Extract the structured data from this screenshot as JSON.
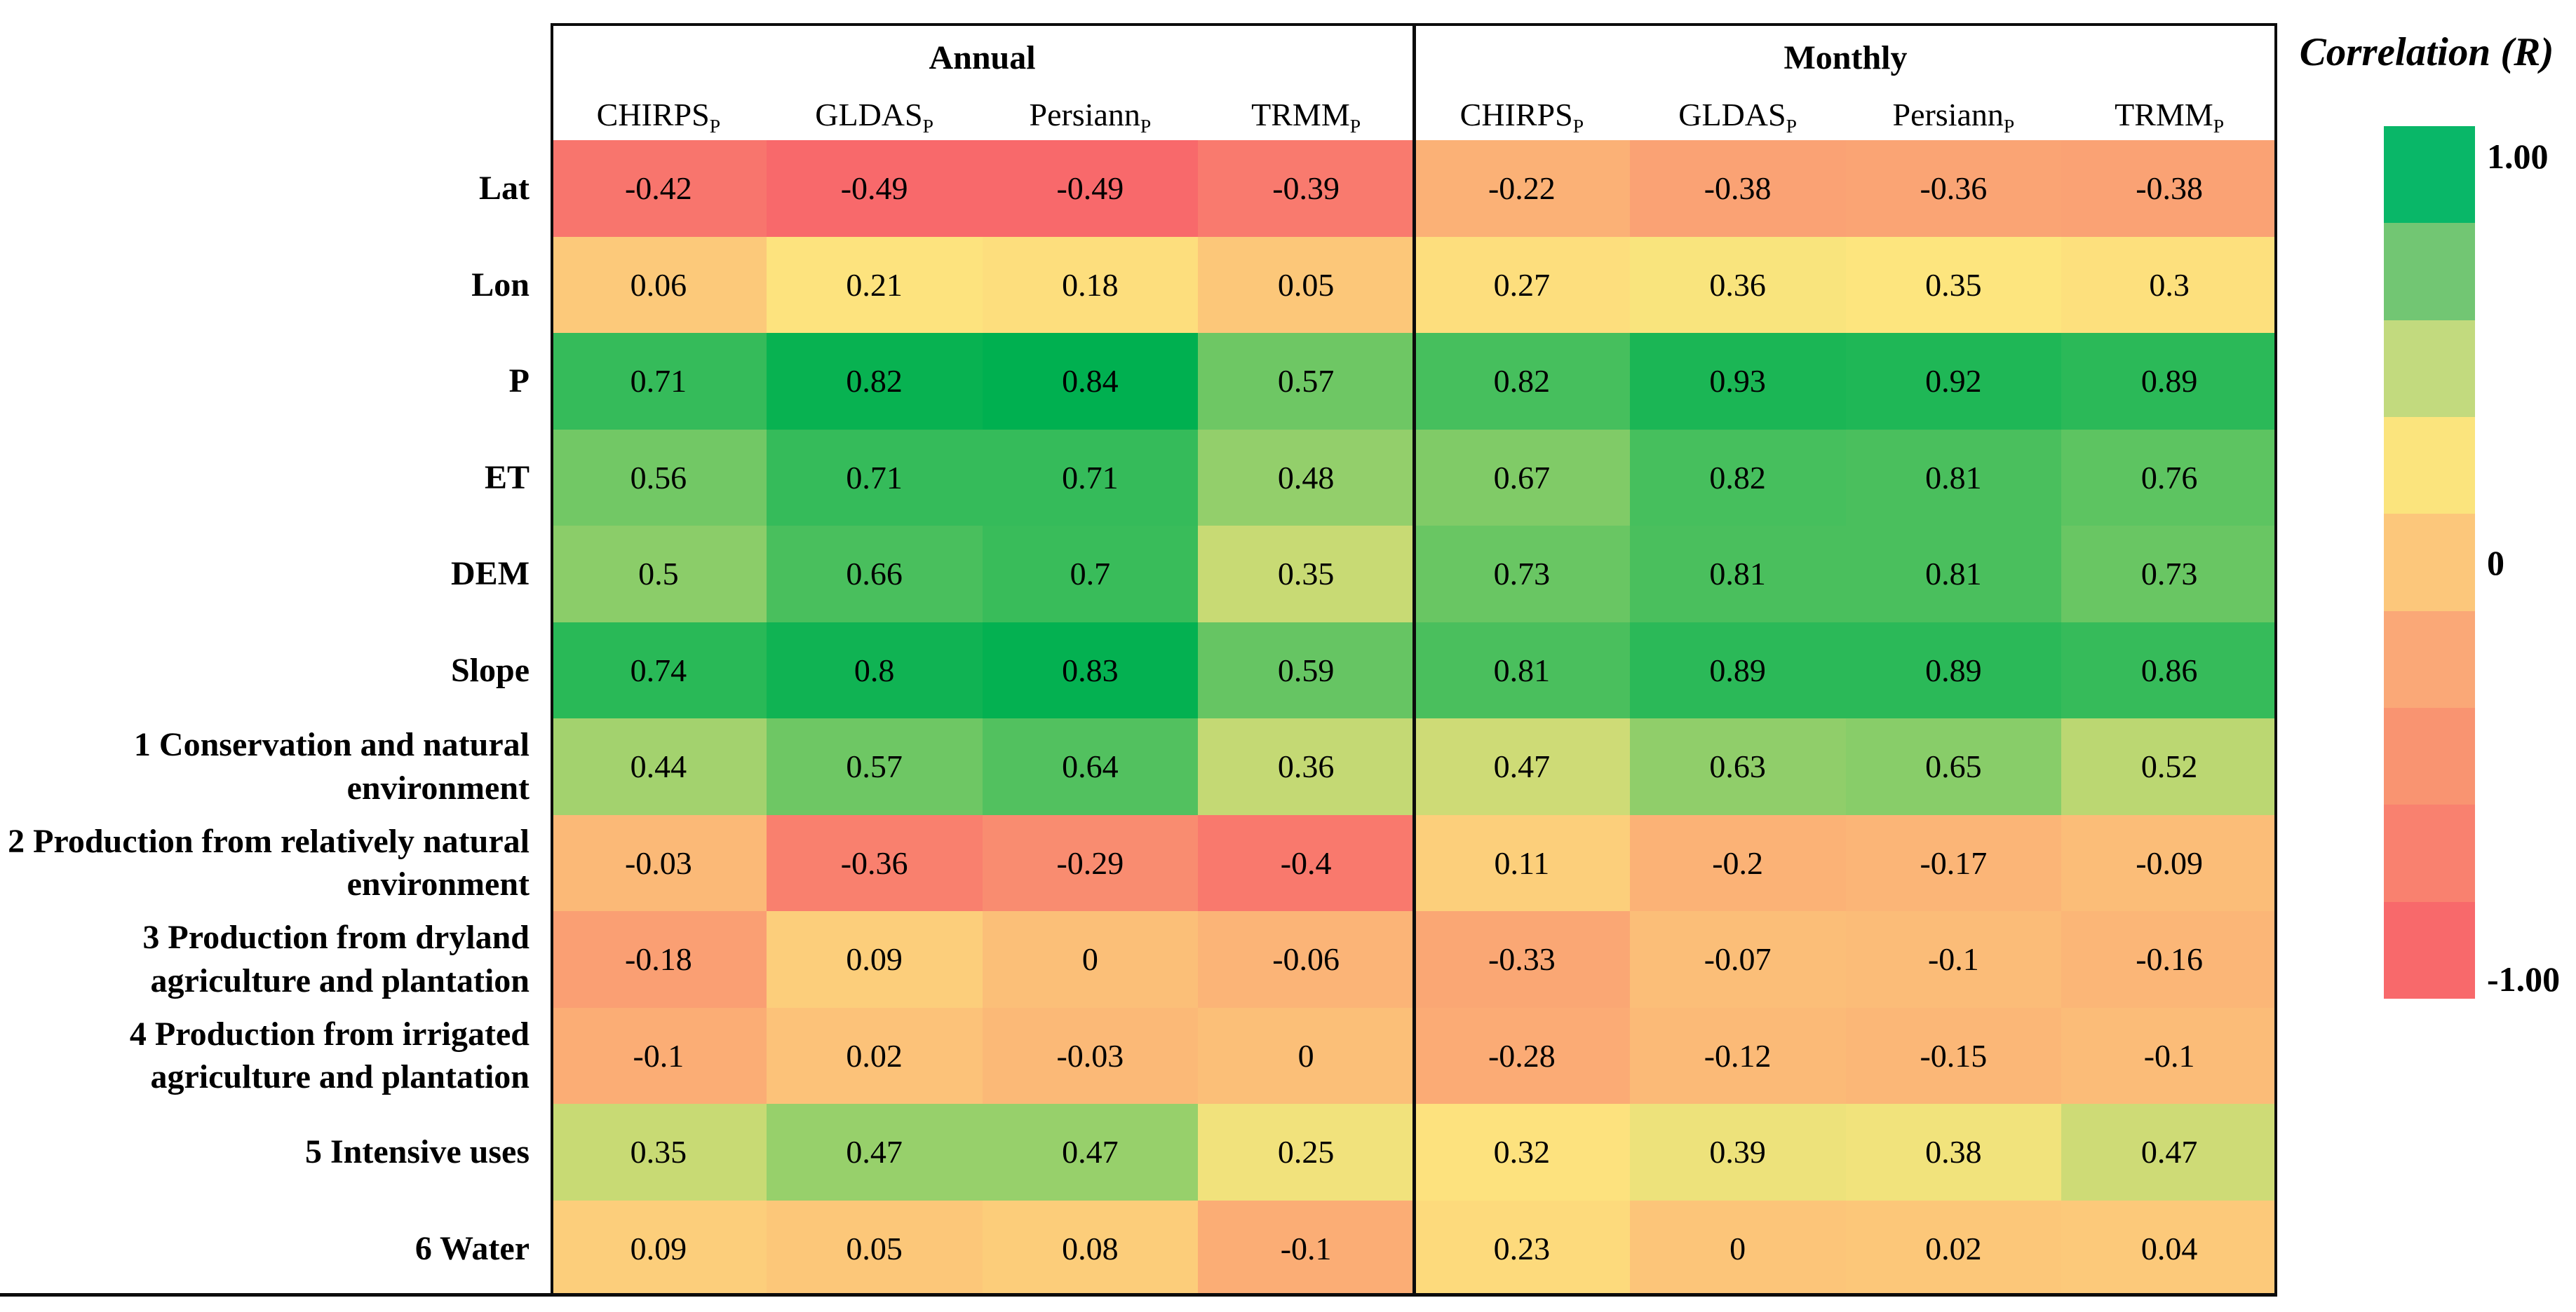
{
  "legend": {
    "title": "Correlation (R)",
    "top_label": "1.00",
    "mid_label": "0",
    "bottom_label": "-1.00",
    "blocks": [
      "#09B768",
      "#72C673",
      "#C2DA7E",
      "#FBE47D",
      "#FCC77B",
      "#FAA877",
      "#F99471",
      "#F9816F",
      "#F8696B"
    ]
  },
  "scales": {
    "annual": {
      "vmin": -0.49,
      "vmid": 0.22,
      "vmax": 0.84
    },
    "monthly": {
      "vmin": -1.0,
      "vmid": 0.35,
      "vmax": 1.0
    },
    "colors": {
      "low": "#F8696B",
      "mid": "#FDE57E",
      "high": "#00B050"
    }
  },
  "groups": [
    {
      "label": "Annual",
      "columns": [
        {
          "name": "CHIRPS",
          "sub": "P"
        },
        {
          "name": "GLDAS",
          "sub": "P"
        },
        {
          "name": "Persiann",
          "sub": "P"
        },
        {
          "name": "TRMM",
          "sub": "P"
        }
      ]
    },
    {
      "label": "Monthly",
      "columns": [
        {
          "name": "CHIRPS",
          "sub": "P"
        },
        {
          "name": "GLDAS",
          "sub": "P"
        },
        {
          "name": "Persiann",
          "sub": "P"
        },
        {
          "name": "TRMM",
          "sub": "P"
        }
      ]
    }
  ],
  "chart_data": {
    "type": "heatmap",
    "legend_title": "Correlation (R)",
    "column_groups": [
      "Annual",
      "Monthly"
    ],
    "columns": [
      "CHIRPS_P",
      "GLDAS_P",
      "Persiann_P",
      "TRMM_P",
      "CHIRPS_P",
      "GLDAS_P",
      "Persiann_P",
      "TRMM_P"
    ],
    "rows": [
      "Lat",
      "Lon",
      "P",
      "ET",
      "DEM",
      "Slope",
      "1 Conservation and natural environment",
      "2 Production from relatively natural environment",
      "3 Production from dryland agriculture and plantation",
      "4 Production from irrigated agriculture and plantation",
      "5 Intensive uses",
      "6 Water"
    ],
    "values": [
      [
        -0.42,
        -0.49,
        -0.49,
        -0.39,
        -0.22,
        -0.38,
        -0.36,
        -0.38
      ],
      [
        0.06,
        0.21,
        0.18,
        0.05,
        0.27,
        0.36,
        0.35,
        0.3
      ],
      [
        0.71,
        0.82,
        0.84,
        0.57,
        0.82,
        0.93,
        0.92,
        0.89
      ],
      [
        0.56,
        0.71,
        0.71,
        0.48,
        0.67,
        0.82,
        0.81,
        0.76
      ],
      [
        0.5,
        0.66,
        0.7,
        0.35,
        0.73,
        0.81,
        0.81,
        0.73
      ],
      [
        0.74,
        0.8,
        0.83,
        0.59,
        0.81,
        0.89,
        0.89,
        0.86
      ],
      [
        0.44,
        0.57,
        0.64,
        0.36,
        0.47,
        0.63,
        0.65,
        0.52
      ],
      [
        -0.03,
        -0.36,
        -0.29,
        -0.4,
        0.11,
        -0.2,
        -0.17,
        -0.09
      ],
      [
        -0.18,
        0.09,
        0,
        -0.06,
        -0.33,
        -0.07,
        -0.1,
        -0.16
      ],
      [
        -0.1,
        0.02,
        -0.03,
        0,
        -0.28,
        -0.12,
        -0.15,
        -0.1
      ],
      [
        0.35,
        0.47,
        0.47,
        0.25,
        0.32,
        0.39,
        0.38,
        0.47
      ],
      [
        0.09,
        0.05,
        0.08,
        -0.1,
        0.23,
        0,
        0.02,
        0.04
      ]
    ],
    "colorbar_range": [
      -1,
      1
    ],
    "colorbar_tick_labels": [
      "1.00",
      "0",
      "-1.00"
    ]
  }
}
